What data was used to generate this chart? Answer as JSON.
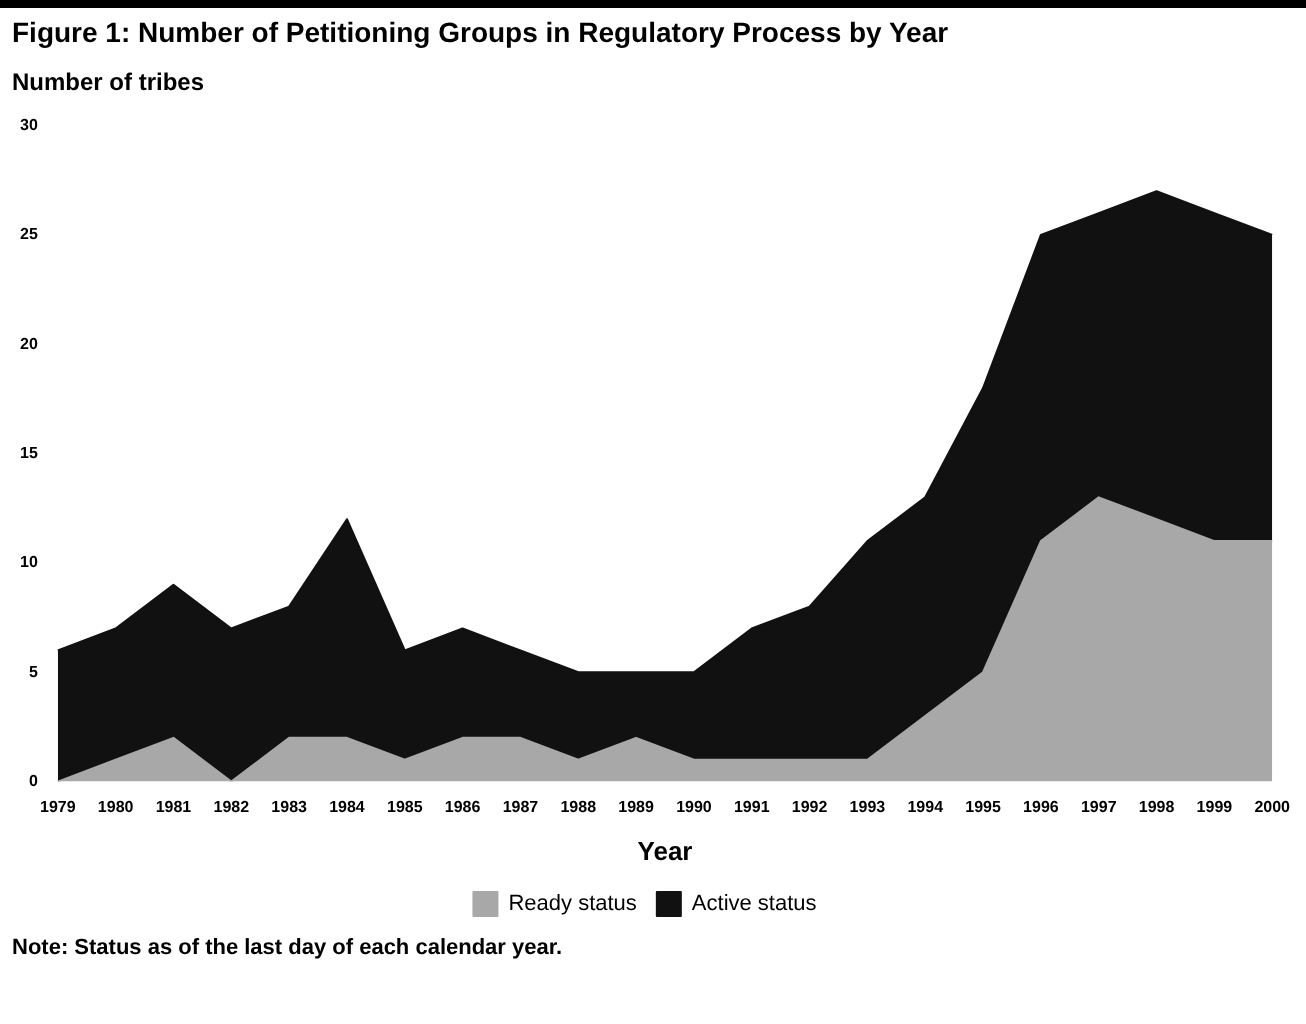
{
  "chart_data": {
    "type": "area",
    "title": "Figure 1: Number of Petitioning Groups in Regulatory Process by Year",
    "ylabel": "Number of tribes",
    "xlabel": "Year",
    "categories": [
      "1979",
      "1980",
      "1981",
      "1982",
      "1983",
      "1984",
      "1985",
      "1986",
      "1987",
      "1988",
      "1989",
      "1990",
      "1991",
      "1992",
      "1993",
      "1994",
      "1995",
      "1996",
      "1997",
      "1998",
      "1999",
      "2000"
    ],
    "series": [
      {
        "name": "Ready status",
        "color": "#a8a8a8",
        "values": [
          0,
          1,
          2,
          0,
          2,
          2,
          1,
          2,
          2,
          1,
          2,
          1,
          1,
          1,
          1,
          3,
          5,
          11,
          13,
          12,
          11,
          11
        ]
      },
      {
        "name": "Active status",
        "color": "#111111",
        "values": [
          6,
          6,
          7,
          7,
          6,
          10,
          5,
          5,
          4,
          4,
          3,
          4,
          6,
          7,
          10,
          10,
          13,
          14,
          13,
          15,
          15,
          14
        ]
      }
    ],
    "stacked": true,
    "ylim": [
      0,
      30
    ],
    "yticks": [
      0,
      5,
      10,
      15,
      20,
      25,
      30
    ],
    "grid": false,
    "legend": "bottom",
    "annotations": [
      "Note: Status as of the last day of each calendar year."
    ]
  }
}
